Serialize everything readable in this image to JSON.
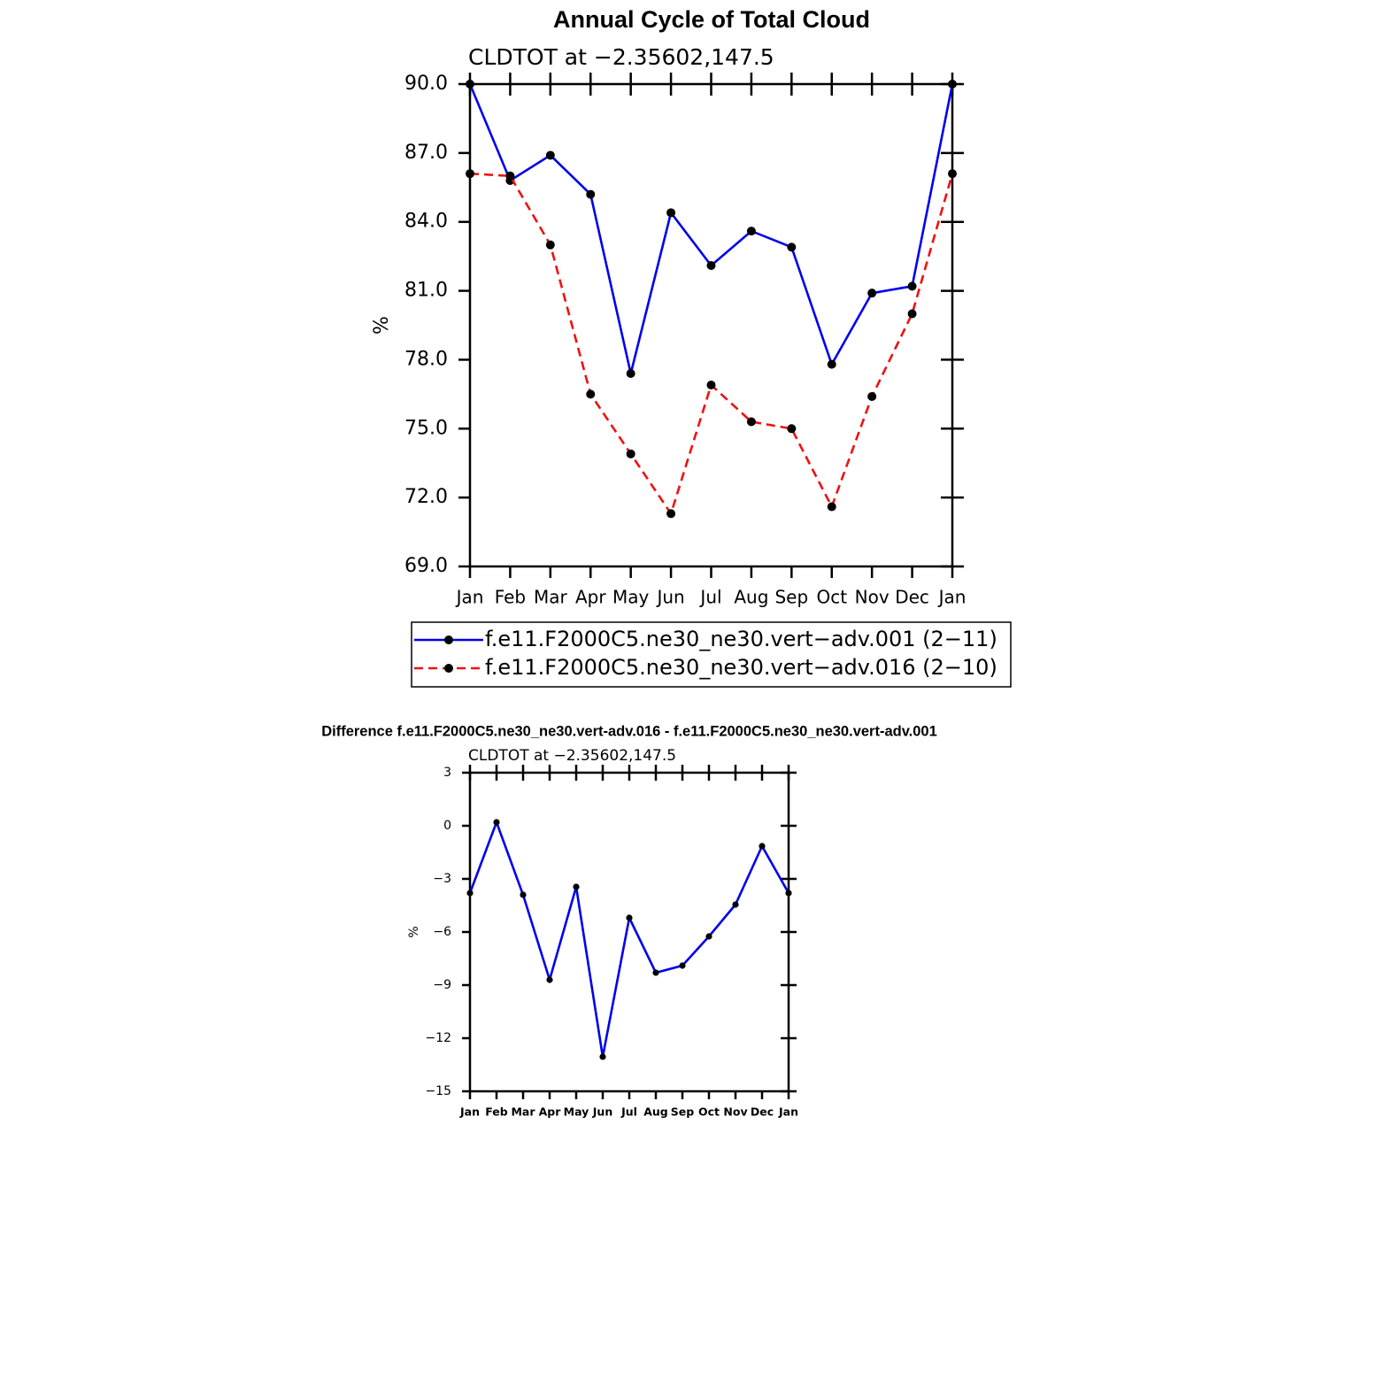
{
  "chart_data": [
    {
      "type": "line",
      "title": "Annual Cycle of Total Cloud",
      "subtitle": "CLDTOT at −2.35602,147.5",
      "y_label": "%",
      "categories": [
        "Jan",
        "Feb",
        "Mar",
        "Apr",
        "May",
        "Jun",
        "Jul",
        "Aug",
        "Sep",
        "Oct",
        "Nov",
        "Dec",
        "Jan"
      ],
      "series": [
        {
          "name": "f.e11.F2000C5.ne30_ne30.vert−adv.001 (2−11)",
          "color": "#0000ee",
          "linestyle": "solid",
          "values": [
            90.0,
            85.8,
            86.9,
            85.2,
            77.4,
            84.4,
            82.1,
            83.6,
            82.9,
            77.8,
            80.9,
            81.2,
            90.0
          ]
        },
        {
          "name": "f.e11.F2000C5.ne30_ne30.vert−adv.016 (2−10)",
          "color": "#ee1111",
          "linestyle": "dashed",
          "values": [
            86.1,
            86.0,
            83.0,
            76.5,
            73.9,
            71.3,
            76.9,
            75.3,
            75.0,
            71.6,
            76.4,
            80.0,
            86.1
          ]
        }
      ],
      "ylim": [
        69,
        90
      ],
      "yticks": [
        {
          "value": 69,
          "label": "69.0"
        },
        {
          "value": 72,
          "label": "72.0"
        },
        {
          "value": 75,
          "label": "75.0"
        },
        {
          "value": 78,
          "label": "78.0"
        },
        {
          "value": 81,
          "label": "81.0"
        },
        {
          "value": 84,
          "label": "84.0"
        },
        {
          "value": 87,
          "label": "87.0"
        },
        {
          "value": 90,
          "label": "90.0"
        }
      ],
      "legend": "bottom"
    },
    {
      "type": "line",
      "title": "Difference f.e11.F2000C5.ne30_ne30.vert-adv.016 - f.e11.F2000C5.ne30_ne30.vert-adv.001",
      "subtitle": "CLDTOT at −2.35602,147.5",
      "y_label": "%",
      "categories": [
        "Jan",
        "Feb",
        "Mar",
        "Apr",
        "May",
        "Jun",
        "Jul",
        "Aug",
        "Sep",
        "Oct",
        "Nov",
        "Dec",
        "Jan"
      ],
      "color": "#0000ee",
      "values": [
        -3.8,
        0.2,
        -3.9,
        -8.7,
        -3.45,
        -13.05,
        -5.2,
        -8.3,
        -7.9,
        -6.25,
        -4.45,
        -1.15,
        -3.8
      ],
      "ylim": [
        -15,
        3
      ],
      "yticks": [
        {
          "value": -15,
          "label": "−15"
        },
        {
          "value": -12,
          "label": "−12"
        },
        {
          "value": -9,
          "label": "−9"
        },
        {
          "value": -6,
          "label": "−6"
        },
        {
          "value": -3,
          "label": "−3"
        },
        0,
        3
      ]
    }
  ]
}
